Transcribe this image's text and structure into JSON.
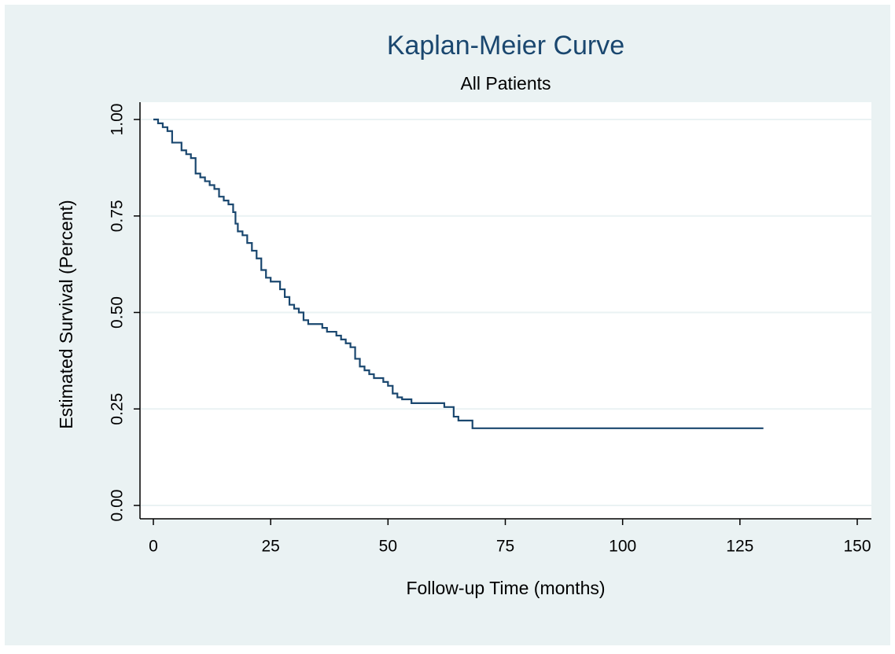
{
  "chart_data": {
    "type": "line",
    "step": true,
    "title": "Kaplan-Meier Curve",
    "subtitle": "All Patients",
    "x_label": "Follow-up Time (months)",
    "y_label": "Estimated Survival (Percent)",
    "x": [
      0,
      1,
      2,
      3,
      4,
      6,
      7,
      8,
      9,
      10,
      11,
      12,
      13,
      14,
      15,
      16,
      17,
      17.5,
      18,
      19,
      20,
      21,
      22,
      23,
      24,
      25,
      27,
      28,
      29,
      30,
      31,
      32,
      33,
      36,
      37,
      39,
      40,
      41,
      42,
      43,
      44,
      45,
      46,
      47,
      49,
      50,
      51,
      52,
      53,
      55,
      62,
      64,
      65,
      68,
      130
    ],
    "series": [
      {
        "color": "#1a476f",
        "values": [
          1.0,
          0.99,
          0.98,
          0.97,
          0.94,
          0.92,
          0.91,
          0.9,
          0.86,
          0.85,
          0.84,
          0.83,
          0.82,
          0.8,
          0.79,
          0.78,
          0.76,
          0.73,
          0.71,
          0.7,
          0.68,
          0.66,
          0.64,
          0.61,
          0.59,
          0.58,
          0.56,
          0.54,
          0.52,
          0.51,
          0.5,
          0.48,
          0.47,
          0.46,
          0.45,
          0.44,
          0.43,
          0.42,
          0.41,
          0.38,
          0.36,
          0.35,
          0.34,
          0.33,
          0.32,
          0.31,
          0.29,
          0.28,
          0.275,
          0.265,
          0.255,
          0.23,
          0.22,
          0.2,
          0.2
        ]
      }
    ],
    "xlim": [
      0,
      150
    ],
    "xticks": [
      0,
      25,
      50,
      75,
      100,
      125,
      150
    ],
    "ylim": [
      0,
      1
    ],
    "yticks": [
      {
        "value": 0,
        "label": "0.00"
      },
      0.25,
      {
        "value": 0.5,
        "label": "0.50"
      },
      0.75,
      {
        "value": 1,
        "label": "1.00"
      }
    ],
    "grid": true
  }
}
